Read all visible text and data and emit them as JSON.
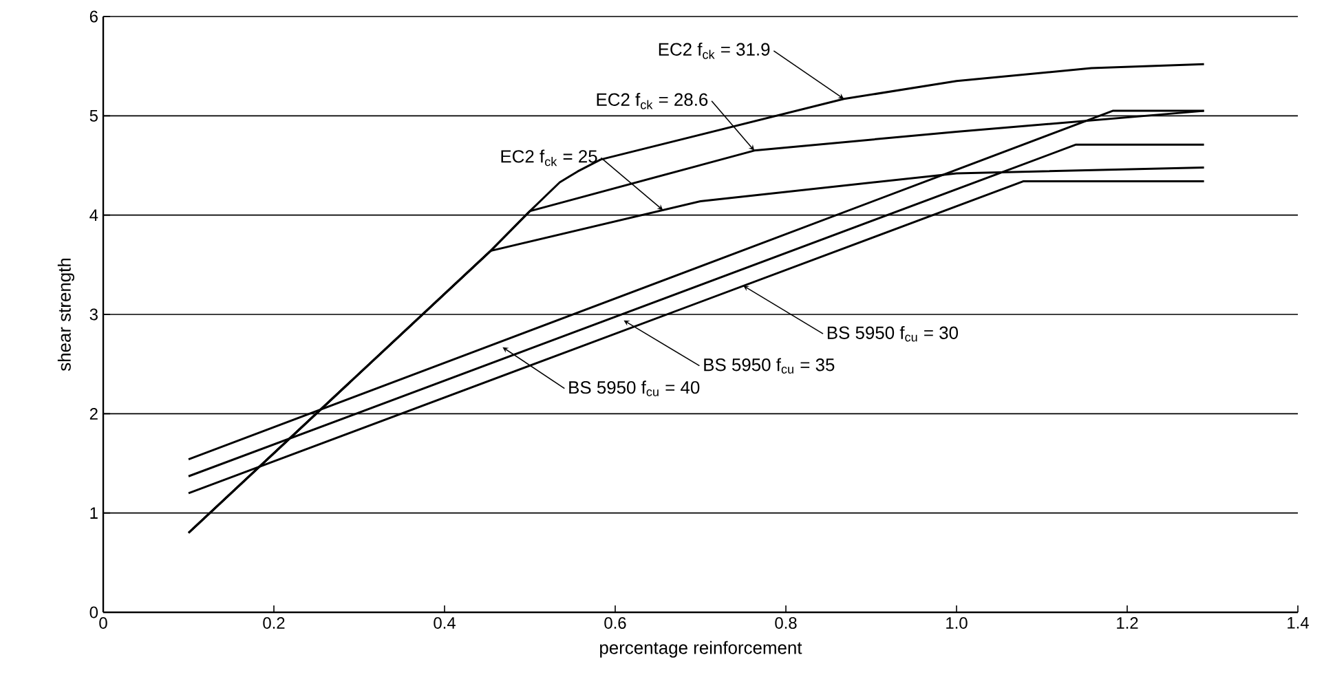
{
  "chart_data": {
    "type": "line",
    "xlabel": "percentage reinforcement",
    "ylabel": "shear strength",
    "xlim": [
      0,
      1.4
    ],
    "ylim": [
      0,
      6
    ],
    "xticks": [
      0,
      0.2,
      0.4,
      0.6,
      0.8,
      {
        "value": 1.0,
        "label": "1.0"
      },
      1.2,
      1.4
    ],
    "yticks": [
      0,
      1,
      2,
      3,
      4,
      5,
      6
    ],
    "grid": "y",
    "line_style": "solid",
    "series": [
      {
        "color": "#000000",
        "x": [
          0.1,
          0.454,
          0.7,
          1.0,
          1.29
        ],
        "values": [
          0.8,
          3.64,
          4.14,
          4.42,
          4.48
        ]
      },
      {
        "color": "#000000",
        "x": [
          0.1,
          0.454,
          0.5,
          0.763,
          1.0,
          1.29
        ],
        "values": [
          0.8,
          3.64,
          4.04,
          4.65,
          4.84,
          5.05
        ]
      },
      {
        "color": "#000000",
        "x": [
          0.1,
          0.454,
          0.5,
          0.535,
          0.556,
          0.583,
          0.868,
          1.0,
          1.158,
          1.29
        ],
        "values": [
          0.8,
          3.64,
          4.04,
          4.33,
          4.44,
          4.56,
          5.17,
          5.35,
          5.48,
          5.52
        ]
      },
      {
        "color": "#000000",
        "x": [
          0.1,
          1.078,
          1.29
        ],
        "values": [
          1.2,
          4.34,
          4.34
        ]
      },
      {
        "color": "#000000",
        "x": [
          0.1,
          1.14,
          1.29
        ],
        "values": [
          1.37,
          4.71,
          4.71
        ]
      },
      {
        "color": "#000000",
        "x": [
          0.1,
          1.183,
          1.29
        ],
        "values": [
          1.54,
          5.05,
          5.05
        ]
      }
    ],
    "annotations": [
      {
        "text": "EC2 f$_{ck}$  =  31.9",
        "x": 0.868,
        "y": 5.17
      },
      {
        "text": "EC2 f$_{ck}$  =  28.6",
        "x": 0.763,
        "y": 4.65
      },
      {
        "text": "EC2 f$_{ck}$  =  25",
        "x": 0.656,
        "y": 4.05
      },
      {
        "text": "BS 5950 f$_{cu}$  =  30",
        "x": 0.75,
        "y": 3.29
      },
      {
        "text": "BS 5950 f$_{cu}$  =  35",
        "x": 0.61,
        "y": 2.94
      },
      {
        "text": "BS 5950 f$_{cu}$  =  40",
        "x": 0.468,
        "y": 2.67
      }
    ]
  }
}
